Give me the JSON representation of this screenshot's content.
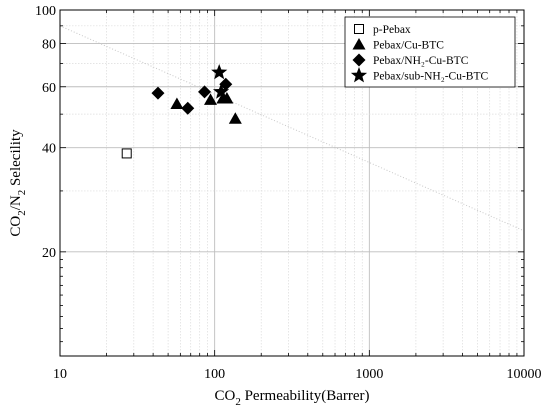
{
  "chart_data": {
    "type": "scatter",
    "x_scale": "log",
    "y_scale": "log",
    "xlim": [
      10,
      10000
    ],
    "ylim": [
      10,
      100
    ],
    "x_ticks": [
      10,
      100,
      1000,
      10000
    ],
    "x_tick_labels": [
      "10",
      "100",
      "1000",
      "10000"
    ],
    "y_ticks": [
      20,
      40,
      60,
      80,
      100
    ],
    "y_tick_labels": [
      "20",
      "40",
      "60",
      "80",
      "100"
    ],
    "xlabel": {
      "pre": "CO",
      "sub": "2",
      "post": " Permeability(Barrer)"
    },
    "ylabel": {
      "a": "CO",
      "a_sub": "2",
      "mid": "/N",
      "b_sub": "2",
      "post": " Selecility"
    },
    "grid": true,
    "legend_position": "top-right",
    "series": [
      {
        "name": "p-Pebax",
        "marker": "open-square",
        "points": [
          [
            27,
            38.5
          ]
        ]
      },
      {
        "name": "Pebax/Cu-BTC",
        "marker": "triangle",
        "points": [
          [
            57,
            53.5
          ],
          [
            94,
            55
          ],
          [
            113,
            55.5
          ],
          [
            120,
            55.5
          ],
          [
            136,
            48.5
          ]
        ]
      },
      {
        "name": "Pebax/NH₂-Cu-BTC",
        "marker": "diamond",
        "points": [
          [
            43,
            57.5
          ],
          [
            67,
            52
          ],
          [
            86,
            58
          ],
          [
            118,
            61
          ]
        ]
      },
      {
        "name": "Pebax/sub-NH₂-Cu-BTC",
        "marker": "star",
        "points": [
          [
            107,
            66
          ],
          [
            110,
            58
          ]
        ]
      }
    ],
    "upper_bound_line": {
      "points": [
        [
          10,
          90
        ],
        [
          10000,
          23
        ]
      ],
      "color": "#c8c8c8"
    }
  }
}
